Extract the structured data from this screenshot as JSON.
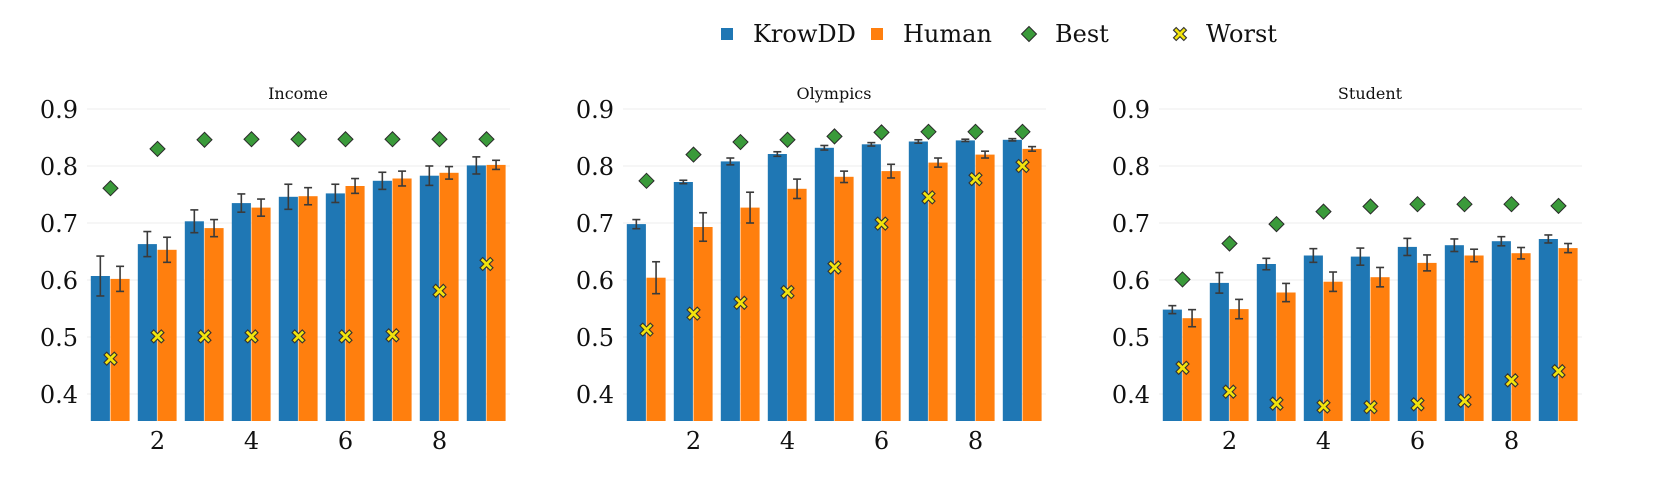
{
  "legend": [
    {
      "label": "KrowDD",
      "marker": "square",
      "color": "#1f77b4"
    },
    {
      "label": "Human",
      "marker": "square",
      "color": "#ff7f0e"
    },
    {
      "label": "Best",
      "marker": "diamond",
      "color": "#3a9a3a"
    },
    {
      "label": "Worst",
      "marker": "x-marker",
      "color": "#f2e40c"
    }
  ],
  "chart_data": [
    {
      "type": "bar",
      "title": "Income",
      "x": [
        1,
        2,
        3,
        4,
        5,
        6,
        7,
        8,
        9
      ],
      "xticks": [
        2,
        4,
        6,
        8
      ],
      "ylim": [
        0.35,
        0.9
      ],
      "yticks": [
        0.4,
        0.5,
        0.6,
        0.7,
        0.8,
        0.9
      ],
      "grid": true,
      "series": [
        {
          "name": "KrowDD",
          "values": [
            0.607,
            0.663,
            0.703,
            0.735,
            0.746,
            0.752,
            0.774,
            0.783,
            0.801
          ],
          "err": [
            0.035,
            0.022,
            0.02,
            0.016,
            0.022,
            0.016,
            0.015,
            0.017,
            0.015
          ]
        },
        {
          "name": "Human",
          "values": [
            0.602,
            0.653,
            0.691,
            0.727,
            0.747,
            0.765,
            0.778,
            0.788,
            0.802
          ],
          "err": [
            0.022,
            0.022,
            0.015,
            0.015,
            0.015,
            0.013,
            0.013,
            0.011,
            0.008
          ]
        },
        {
          "name": "Best",
          "values": [
            0.761,
            0.83,
            0.846,
            0.847,
            0.847,
            0.847,
            0.847,
            0.847,
            0.847
          ]
        },
        {
          "name": "Worst",
          "values": [
            0.462,
            0.501,
            0.501,
            0.501,
            0.501,
            0.501,
            0.503,
            0.581,
            0.628
          ]
        }
      ]
    },
    {
      "type": "bar",
      "title": "Olympics",
      "x": [
        1,
        2,
        3,
        4,
        5,
        6,
        7,
        8,
        9
      ],
      "xticks": [
        2,
        4,
        6,
        8
      ],
      "ylim": [
        0.35,
        0.9
      ],
      "yticks": [
        0.4,
        0.5,
        0.6,
        0.7,
        0.8,
        0.9
      ],
      "grid": true,
      "series": [
        {
          "name": "KrowDD",
          "values": [
            0.698,
            0.772,
            0.808,
            0.821,
            0.832,
            0.838,
            0.843,
            0.845,
            0.846
          ],
          "err": [
            0.008,
            0.003,
            0.006,
            0.004,
            0.004,
            0.003,
            0.003,
            0.002,
            0.002
          ]
        },
        {
          "name": "Human",
          "values": [
            0.604,
            0.693,
            0.727,
            0.76,
            0.781,
            0.791,
            0.806,
            0.82,
            0.83
          ],
          "err": [
            0.028,
            0.025,
            0.027,
            0.017,
            0.01,
            0.012,
            0.008,
            0.006,
            0.004
          ]
        },
        {
          "name": "Best",
          "values": [
            0.774,
            0.82,
            0.842,
            0.846,
            0.852,
            0.859,
            0.86,
            0.86,
            0.86
          ]
        },
        {
          "name": "Worst",
          "values": [
            0.513,
            0.541,
            0.56,
            0.579,
            0.622,
            0.699,
            0.745,
            0.777,
            0.8
          ]
        }
      ]
    },
    {
      "type": "bar",
      "title": "Student",
      "x": [
        1,
        2,
        3,
        4,
        5,
        6,
        7,
        8,
        9
      ],
      "xticks": [
        2,
        4,
        6,
        8
      ],
      "ylim": [
        0.35,
        0.9
      ],
      "yticks": [
        0.4,
        0.5,
        0.6,
        0.7,
        0.8,
        0.9
      ],
      "grid": true,
      "series": [
        {
          "name": "KrowDD",
          "values": [
            0.548,
            0.595,
            0.628,
            0.643,
            0.641,
            0.658,
            0.661,
            0.668,
            0.672
          ],
          "err": [
            0.007,
            0.018,
            0.01,
            0.012,
            0.015,
            0.015,
            0.011,
            0.008,
            0.007
          ]
        },
        {
          "name": "Human",
          "values": [
            0.533,
            0.549,
            0.578,
            0.597,
            0.605,
            0.63,
            0.643,
            0.647,
            0.656
          ],
          "err": [
            0.015,
            0.017,
            0.016,
            0.017,
            0.017,
            0.014,
            0.011,
            0.01,
            0.008
          ]
        },
        {
          "name": "Best",
          "values": [
            0.601,
            0.664,
            0.698,
            0.72,
            0.729,
            0.733,
            0.733,
            0.733,
            0.73
          ]
        },
        {
          "name": "Worst",
          "values": [
            0.446,
            0.404,
            0.383,
            0.378,
            0.377,
            0.382,
            0.388,
            0.424,
            0.44
          ]
        }
      ]
    }
  ]
}
